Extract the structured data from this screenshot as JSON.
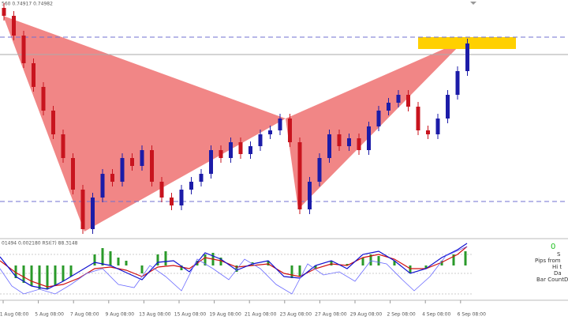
{
  "header": {
    "price_info": "560 0.74917 0.74982",
    "indicator_info": "01494 0.002180  RSI(7) 88.3148"
  },
  "chart_data": {
    "type": "candlestick",
    "ylim": [
      0.722,
      0.752
    ],
    "up_color": "#1c1ca8",
    "down_color": "#c8141e",
    "open": [
      0.751,
      0.75,
      0.7475,
      0.744,
      0.741,
      0.738,
      0.735,
      0.732,
      0.728,
      0.723,
      0.727,
      0.73,
      0.729,
      0.732,
      0.731,
      0.733,
      0.729,
      0.727,
      0.726,
      0.728,
      0.729,
      0.73,
      0.733,
      0.732,
      0.734,
      0.7325,
      0.7335,
      0.735,
      0.7355,
      0.737,
      0.734,
      0.7255,
      0.729,
      0.732,
      0.735,
      0.7335,
      0.7345,
      0.733,
      0.736,
      0.738,
      0.739,
      0.74,
      0.7385,
      0.7355,
      0.735,
      0.737,
      0.74,
      0.743
    ],
    "high": [
      0.7516,
      0.7506,
      0.7481,
      0.7446,
      0.7416,
      0.7386,
      0.7356,
      0.7326,
      0.7286,
      0.7276,
      0.7306,
      0.7306,
      0.7326,
      0.7326,
      0.7336,
      0.7336,
      0.7296,
      0.7276,
      0.7286,
      0.7296,
      0.7306,
      0.7336,
      0.7336,
      0.7346,
      0.7346,
      0.7341,
      0.7356,
      0.7361,
      0.7376,
      0.7376,
      0.7346,
      0.7296,
      0.7326,
      0.7356,
      0.7356,
      0.7351,
      0.7351,
      0.7366,
      0.7386,
      0.7396,
      0.7406,
      0.7406,
      0.7391,
      0.7361,
      0.7376,
      0.7406,
      0.7436,
      0.7471
    ],
    "low": [
      0.7494,
      0.7469,
      0.7434,
      0.7404,
      0.7374,
      0.7344,
      0.7314,
      0.7274,
      0.7224,
      0.7224,
      0.7264,
      0.7284,
      0.7284,
      0.7304,
      0.7304,
      0.7284,
      0.7264,
      0.7254,
      0.7254,
      0.7274,
      0.7284,
      0.7294,
      0.7314,
      0.7314,
      0.7319,
      0.7319,
      0.7329,
      0.7344,
      0.7349,
      0.7334,
      0.7249,
      0.7249,
      0.7284,
      0.7314,
      0.7329,
      0.7329,
      0.7324,
      0.7324,
      0.7354,
      0.7374,
      0.7384,
      0.7379,
      0.7349,
      0.7344,
      0.7344,
      0.7364,
      0.7394,
      0.7424
    ],
    "close": [
      0.75,
      0.7475,
      0.744,
      0.741,
      0.738,
      0.735,
      0.732,
      0.728,
      0.723,
      0.727,
      0.73,
      0.729,
      0.732,
      0.731,
      0.733,
      0.729,
      0.727,
      0.726,
      0.728,
      0.729,
      0.73,
      0.733,
      0.732,
      0.734,
      0.7325,
      0.7335,
      0.735,
      0.7355,
      0.737,
      0.734,
      0.7255,
      0.729,
      0.732,
      0.735,
      0.7335,
      0.7345,
      0.733,
      0.736,
      0.738,
      0.739,
      0.74,
      0.7385,
      0.7355,
      0.735,
      0.737,
      0.74,
      0.743,
      0.7465
    ],
    "x_labels": [
      "1 Aug 08:00",
      "5 Aug 08:00",
      "7 Aug 08:00",
      "9 Aug 08:00",
      "13 Aug 08:00",
      "15 Aug 08:00",
      "19 Aug 08:00",
      "21 Aug 08:00",
      "23 Aug 08:00",
      "27 Aug 08:00",
      "29 Aug 08:00",
      "2 Sep 08:00",
      "4 Sep 08:00",
      "6 Sep 08:00"
    ]
  },
  "side_panel": {
    "zero": "0",
    "s": "S",
    "pips": "Pips from",
    "hi": "Hi t",
    "da": "Da",
    "bar_count": "Bar CountDo"
  }
}
